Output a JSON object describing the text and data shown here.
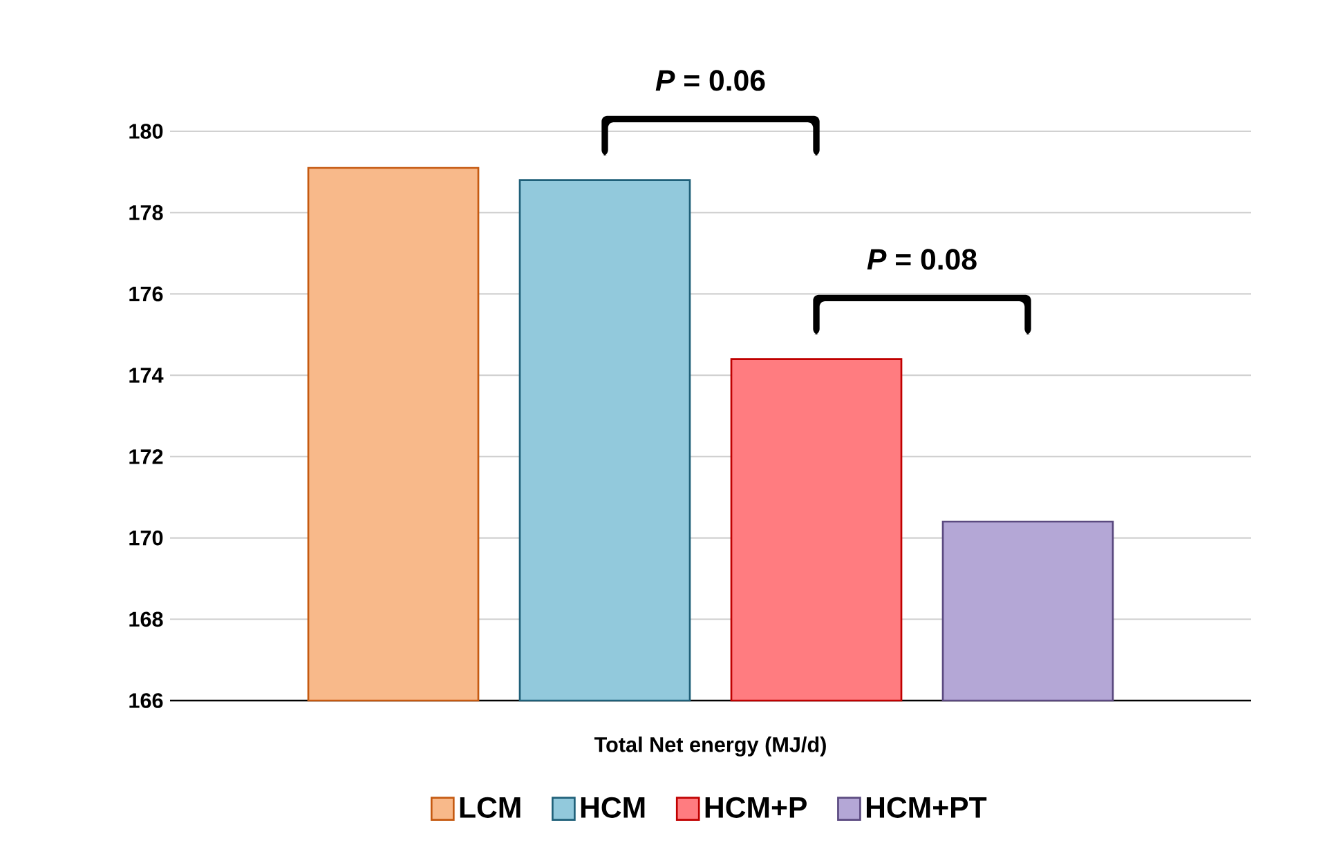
{
  "chart_data": {
    "type": "bar",
    "categories": [
      "Total Net energy (MJ/d)"
    ],
    "series": [
      {
        "name": "LCM",
        "color": "#f8b98a",
        "values": [
          179.1
        ]
      },
      {
        "name": "HCM",
        "color": "#92c9dc",
        "values": [
          178.8
        ]
      },
      {
        "name": "HCM+P",
        "color": "#ff7c80",
        "values": [
          174.4
        ]
      },
      {
        "name": "HCM+PT",
        "color": "#b4a7d6",
        "values": [
          170.4
        ]
      }
    ],
    "ylim": [
      166,
      180
    ],
    "yticks": [
      166,
      168,
      170,
      172,
      174,
      176,
      178,
      180
    ],
    "grid": "y",
    "legend": "bottom",
    "annotations": [
      "*P* = 0.06",
      "*P* = 0.08"
    ]
  }
}
